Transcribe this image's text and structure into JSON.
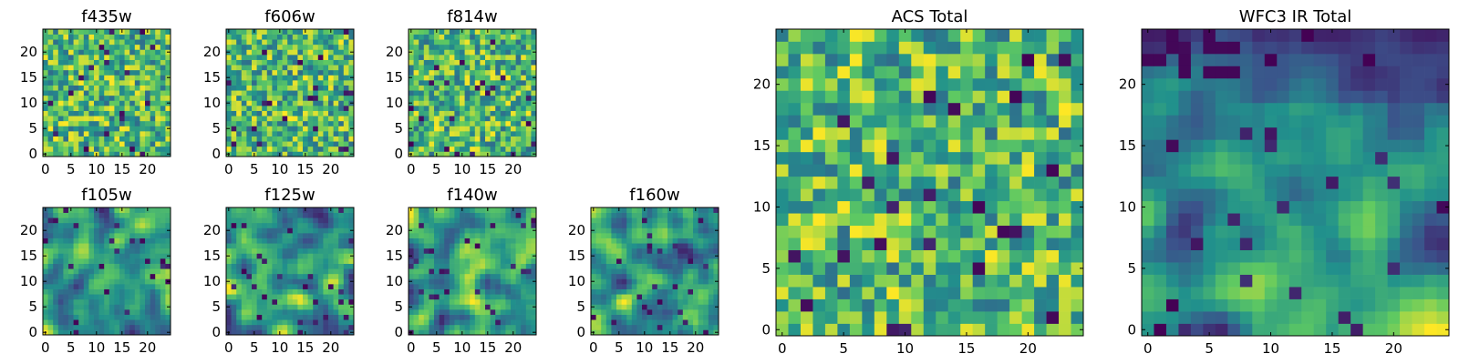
{
  "figure": {
    "colormap": "viridis",
    "colormap_stops": [
      "#440154",
      "#3b528b",
      "#21918c",
      "#5ec962",
      "#fde725"
    ]
  },
  "chart_data": [
    {
      "type": "heatmap",
      "title": "f435w",
      "grid_size": [
        25,
        25
      ],
      "origin": "lower",
      "xlim": [
        0,
        24
      ],
      "ylim": [
        0,
        24
      ],
      "xticks": [
        0,
        5,
        10,
        15,
        20
      ],
      "yticks": [
        0,
        5,
        10,
        15,
        20
      ],
      "pattern": "uncorrelated"
    },
    {
      "type": "heatmap",
      "title": "f606w",
      "grid_size": [
        25,
        25
      ],
      "origin": "lower",
      "xlim": [
        0,
        24
      ],
      "ylim": [
        0,
        24
      ],
      "xticks": [
        0,
        5,
        10,
        15,
        20
      ],
      "yticks": [
        0,
        5,
        10,
        15,
        20
      ],
      "pattern": "uncorrelated"
    },
    {
      "type": "heatmap",
      "title": "f814w",
      "grid_size": [
        25,
        25
      ],
      "origin": "lower",
      "xlim": [
        0,
        24
      ],
      "ylim": [
        0,
        24
      ],
      "xticks": [
        0,
        5,
        10,
        15,
        20
      ],
      "yticks": [
        0,
        5,
        10,
        15,
        20
      ],
      "pattern": "uncorrelated"
    },
    {
      "type": "heatmap",
      "title": "f105w",
      "grid_size": [
        25,
        25
      ],
      "origin": "lower",
      "xlim": [
        0,
        24
      ],
      "ylim": [
        0,
        24
      ],
      "xticks": [
        0,
        5,
        10,
        15,
        20
      ],
      "yticks": [
        0,
        5,
        10,
        15,
        20
      ],
      "pattern": "correlated"
    },
    {
      "type": "heatmap",
      "title": "f125w",
      "grid_size": [
        25,
        25
      ],
      "origin": "lower",
      "xlim": [
        0,
        24
      ],
      "ylim": [
        0,
        24
      ],
      "xticks": [
        0,
        5,
        10,
        15,
        20
      ],
      "yticks": [
        0,
        5,
        10,
        15,
        20
      ],
      "pattern": "correlated"
    },
    {
      "type": "heatmap",
      "title": "f140w",
      "grid_size": [
        25,
        25
      ],
      "origin": "lower",
      "xlim": [
        0,
        24
      ],
      "ylim": [
        0,
        24
      ],
      "xticks": [
        0,
        5,
        10,
        15,
        20
      ],
      "yticks": [
        0,
        5,
        10,
        15,
        20
      ],
      "pattern": "correlated"
    },
    {
      "type": "heatmap",
      "title": "f160w",
      "grid_size": [
        25,
        25
      ],
      "origin": "lower",
      "xlim": [
        0,
        24
      ],
      "ylim": [
        0,
        24
      ],
      "xticks": [
        0,
        5,
        10,
        15,
        20
      ],
      "yticks": [
        0,
        5,
        10,
        15,
        20
      ],
      "pattern": "correlated"
    },
    {
      "type": "heatmap",
      "title": "ACS Total",
      "grid_size": [
        25,
        25
      ],
      "origin": "lower",
      "xlim": [
        0,
        24
      ],
      "ylim": [
        0,
        24
      ],
      "xticks": [
        0,
        5,
        10,
        15,
        20
      ],
      "yticks": [
        0,
        5,
        10,
        15,
        20
      ],
      "pattern": "uncorrelated"
    },
    {
      "type": "heatmap",
      "title": "WFC3 IR Total",
      "grid_size": [
        25,
        25
      ],
      "origin": "lower",
      "xlim": [
        0,
        24
      ],
      "ylim": [
        0,
        24
      ],
      "xticks": [
        0,
        5,
        10,
        15,
        20
      ],
      "yticks": [
        0,
        5,
        10,
        15,
        20
      ],
      "pattern": "correlated-dark-top"
    }
  ]
}
